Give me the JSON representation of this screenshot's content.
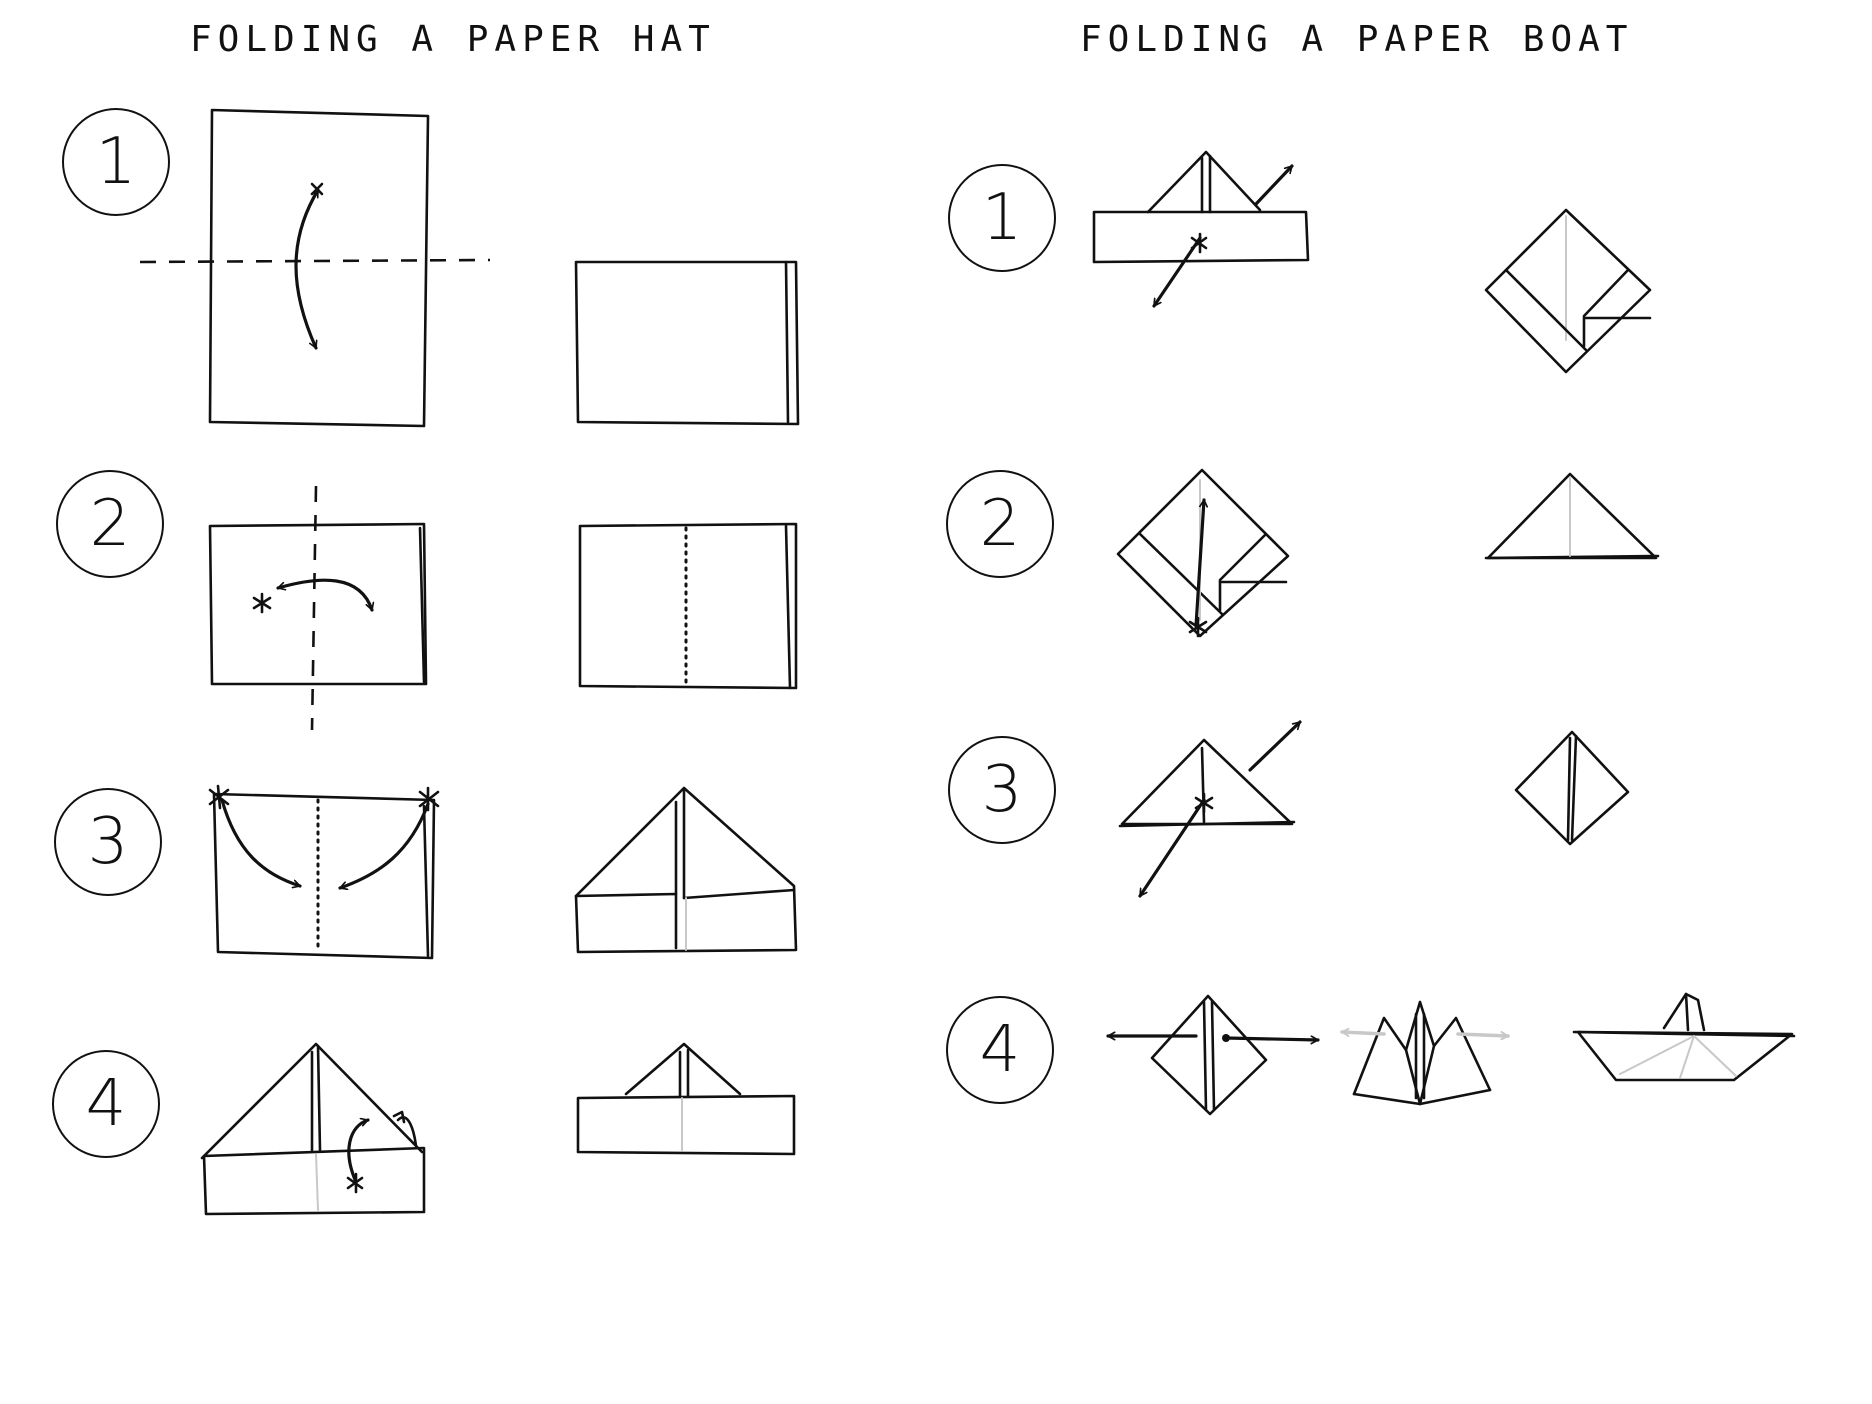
{
  "hat": {
    "title": "FOLDING A PAPER HAT",
    "steps": [
      "1",
      "2",
      "3",
      "4"
    ]
  },
  "boat": {
    "title": "FOLDING A PAPER BOAT",
    "steps": [
      "1",
      "2",
      "3",
      "4"
    ]
  }
}
